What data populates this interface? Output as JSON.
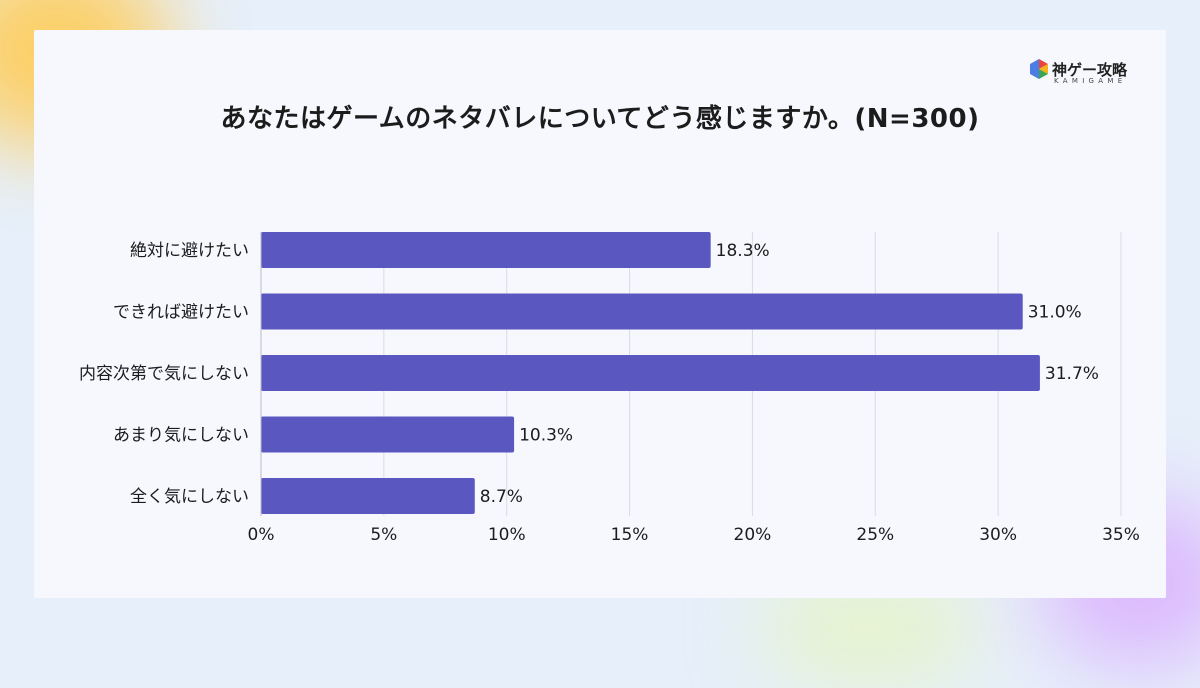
{
  "brand": {
    "name": "神ゲー攻略",
    "sub": "KAMIGAME",
    "colors": [
      "#e8453c",
      "#f6b21b",
      "#3aa655",
      "#4c7ce5"
    ]
  },
  "chart_data": {
    "type": "bar",
    "orientation": "horizontal",
    "title": "あなたはゲームのネタバレについてどう感じますか。(N=300)",
    "categories": [
      "絶対に避けたい",
      "できれば避けたい",
      "内容次第で気にしない",
      "あまり気にしない",
      "全く気にしない"
    ],
    "values": [
      18.3,
      31.0,
      31.7,
      10.3,
      8.7
    ],
    "value_labels": [
      "18.3%",
      "31.0%",
      "31.7%",
      "10.3%",
      "8.7%"
    ],
    "xlim": [
      0,
      35
    ],
    "xticks": [
      0,
      5,
      10,
      15,
      20,
      25,
      30,
      35
    ],
    "xtick_labels": [
      "0%",
      "5%",
      "10%",
      "15%",
      "20%",
      "25%",
      "30%",
      "35%"
    ],
    "bar_color": "#5a57c0",
    "grid": true
  }
}
